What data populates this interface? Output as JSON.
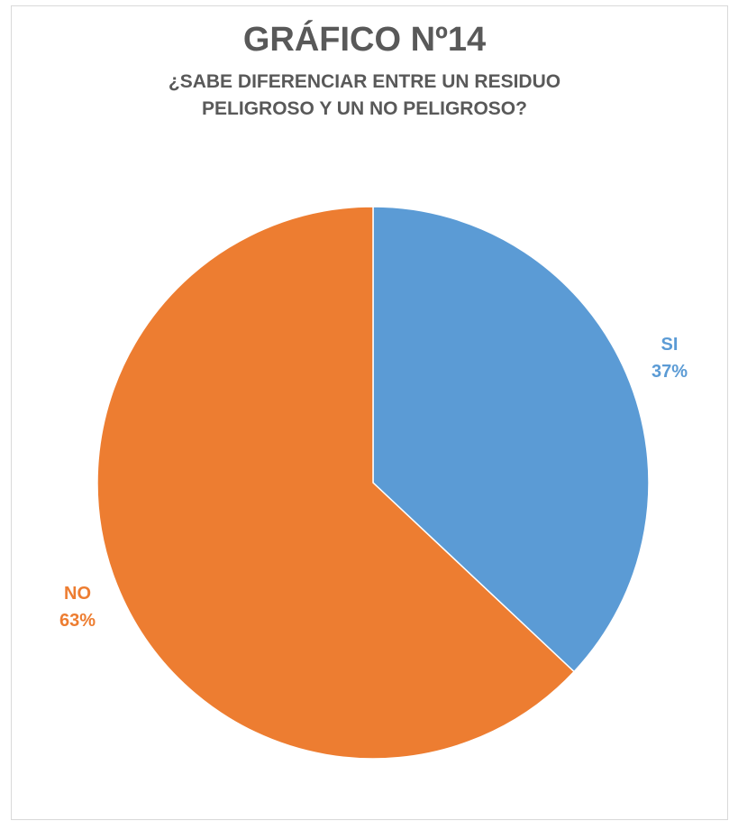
{
  "chart_data": {
    "type": "pie",
    "title": "GRÁFICO Nº14",
    "subtitle": "¿SABE DIFERENCIAR ENTRE UN RESIDUO PELIGROSO Y UN NO PELIGROSO?",
    "slices": [
      {
        "label": "SI",
        "value": 37,
        "value_label": "37%",
        "color": "#5b9bd5"
      },
      {
        "label": "NO",
        "value": 63,
        "value_label": "63%",
        "color": "#ed7d31"
      }
    ]
  }
}
